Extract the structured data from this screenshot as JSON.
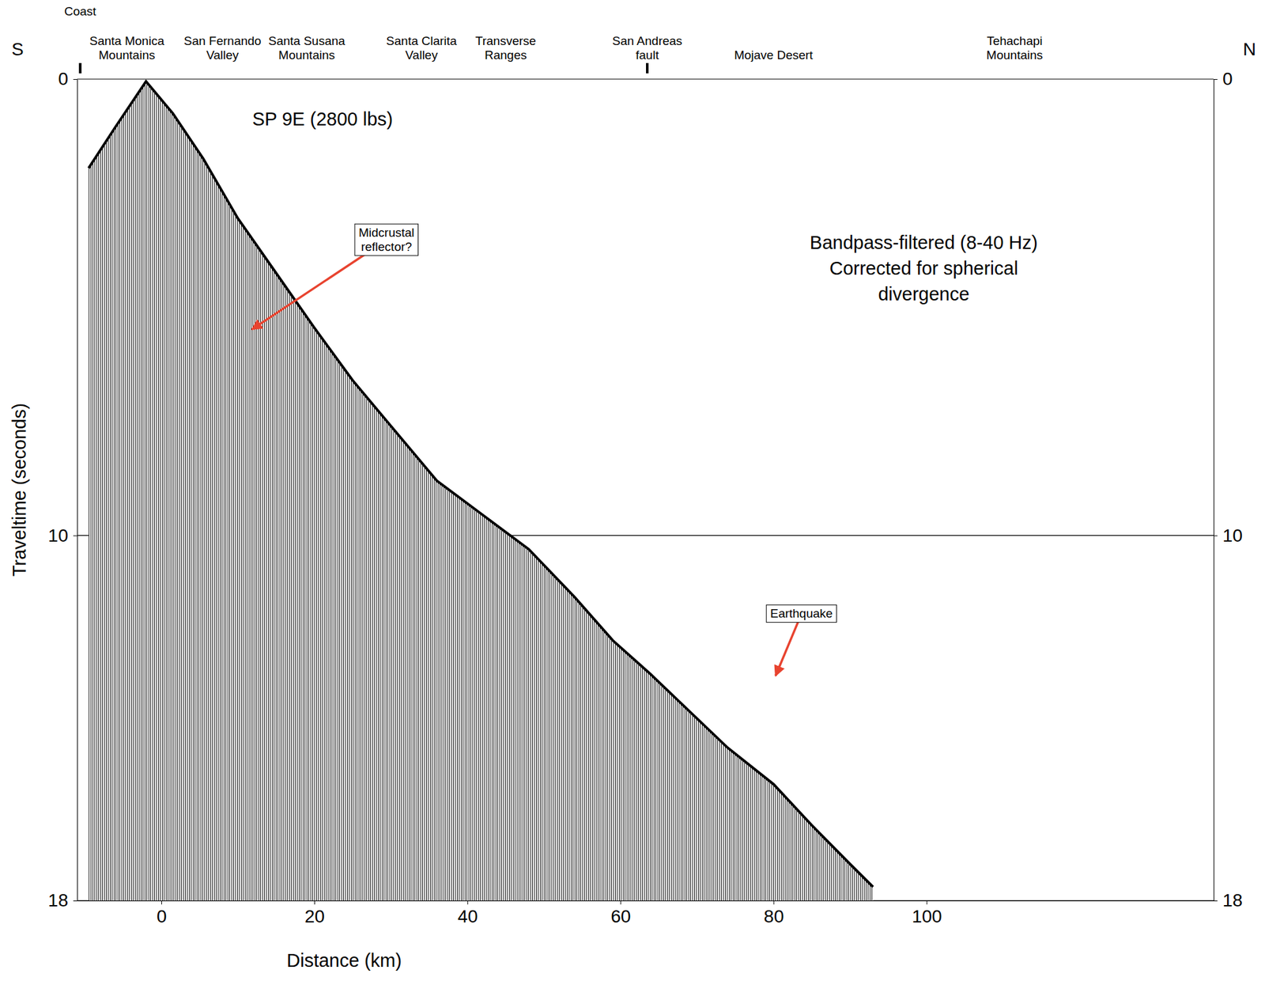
{
  "chart_data": {
    "type": "line",
    "title": "SP 9E (2800 lbs)",
    "x_label": "Distance (km)",
    "y_label": "Traveltime (seconds)",
    "x": [
      -9.5,
      -6,
      -2,
      1.5,
      5.5,
      10,
      15,
      20,
      25,
      30,
      36,
      42,
      48,
      54,
      59,
      64,
      69,
      74,
      80,
      85,
      90,
      93
    ],
    "values": [
      1.95,
      1.05,
      0.05,
      0.75,
      1.75,
      3.05,
      4.25,
      5.45,
      6.6,
      7.6,
      8.8,
      9.55,
      10.3,
      11.35,
      12.3,
      13.05,
      13.85,
      14.65,
      15.45,
      16.35,
      17.2,
      17.7
    ],
    "color": "#000000",
    "xlim": [
      -11,
      137.5
    ],
    "xticks": [
      0,
      20,
      40,
      60,
      80,
      100
    ],
    "ylim": [
      0,
      18
    ],
    "yticks": [
      0,
      10,
      18
    ],
    "grid": true,
    "regions": [
      {
        "label": "Santa Monica Mountains",
        "x": -4.5
      },
      {
        "label": "San Fernando Valley",
        "x": 8
      },
      {
        "label": "Santa Susana Mountains",
        "x": 19
      },
      {
        "label": "Santa Clarita Valley",
        "x": 34
      },
      {
        "label": "Transverse Ranges",
        "x": 45
      },
      {
        "label": "Mojave Desert",
        "x": 80
      },
      {
        "label": "Tehachapi Mountains",
        "x": 111.5
      }
    ],
    "location_ticks": [
      {
        "label": "Coast",
        "x": -10.6
      },
      {
        "label": "San Andreas fault",
        "x": 63.5
      }
    ],
    "directions": {
      "south": "S",
      "north": "N"
    },
    "annotations": [
      {
        "text": "Midcrustal reflector?",
        "x": 11.7,
        "y": 5.5
      },
      {
        "text": "Earthquake",
        "x": 80.2,
        "y": 13.1
      }
    ],
    "note": "Bandpass-filtered (8-40 Hz) Corrected for spherical divergence"
  }
}
